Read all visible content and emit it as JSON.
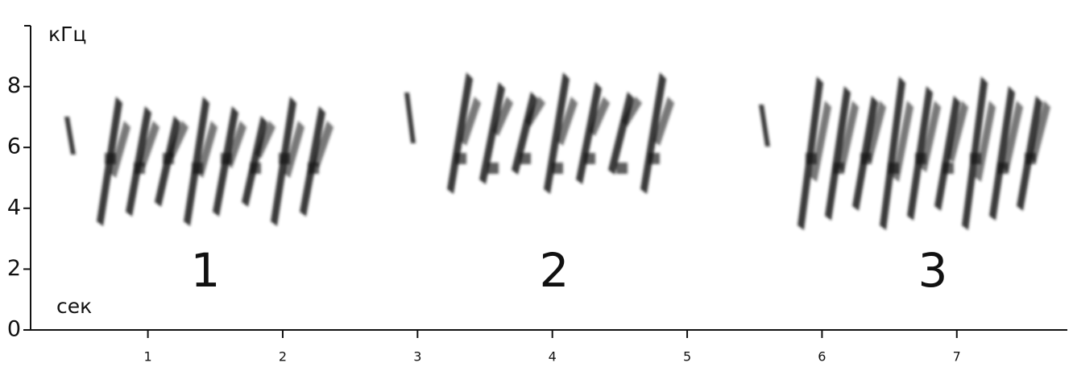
{
  "chart_data": {
    "type": "spectrogram",
    "y_unit_label": "кГц",
    "x_unit_label": "сек",
    "section_labels": [
      "1",
      "2",
      "3"
    ],
    "xlim": [
      0.13,
      7.82
    ],
    "xticks": [
      1,
      2,
      3,
      4,
      5,
      6,
      7
    ],
    "ylim": [
      0,
      10
    ],
    "yticks": [
      0,
      2,
      4,
      6,
      8
    ],
    "color": "#1a1a1a"
  }
}
